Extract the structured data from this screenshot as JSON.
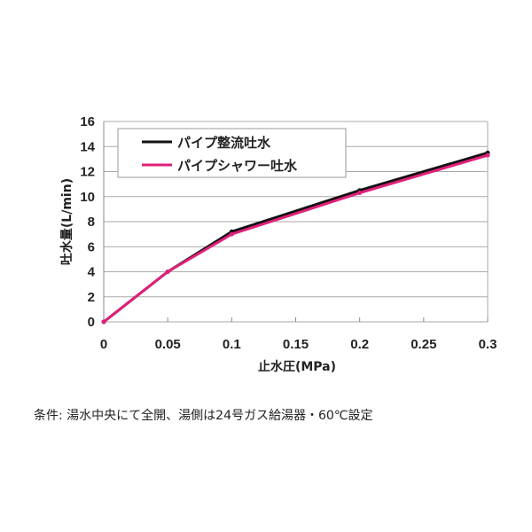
{
  "chart_data": {
    "type": "line",
    "title": "",
    "xlabel": "止水圧(MPa)",
    "ylabel": "吐水量(L/min)",
    "xlim": [
      0,
      0.3
    ],
    "ylim": [
      0,
      16
    ],
    "x_ticks": [
      "0",
      "0.05",
      "0.1",
      "0.15",
      "0.2",
      "0.25",
      "0.3"
    ],
    "y_ticks": [
      "0",
      "2",
      "4",
      "6",
      "8",
      "10",
      "12",
      "14",
      "16"
    ],
    "grid": true,
    "legend_position": "top-left",
    "series": [
      {
        "name": "パイプ整流吐水",
        "color": "#111111",
        "x": [
          0,
          0.05,
          0.1,
          0.2,
          0.3
        ],
        "y": [
          0,
          4.0,
          7.2,
          10.5,
          13.5
        ]
      },
      {
        "name": "パイプシャワー吐水",
        "color": "#e0207a",
        "x": [
          0,
          0.05,
          0.1,
          0.2,
          0.3
        ],
        "y": [
          0,
          4.0,
          7.0,
          10.3,
          13.3
        ]
      }
    ]
  },
  "footnote": "条件: 湯水中央にて全開、湯側は24号ガス給湯器・60℃設定"
}
